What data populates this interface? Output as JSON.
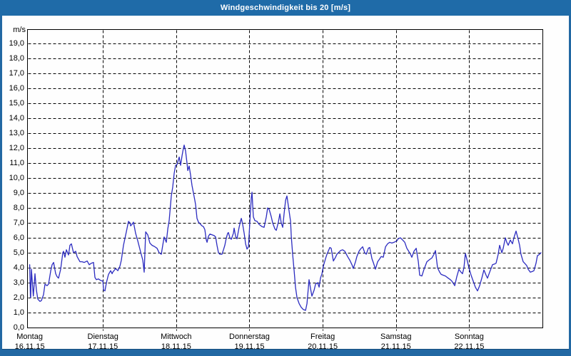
{
  "window": {
    "title": "Windgeschwindigkeit bis 20 [m/s]"
  },
  "colors": {
    "frame_blue": "#2268a3",
    "titlebar_blue": "#1f6ba8",
    "plot_background": "#fefefe",
    "grid_black": "#000000",
    "line_blue": "#2c2cc0",
    "title_text": "#ffffff",
    "label_text": "#000000"
  },
  "chart_data": {
    "type": "line",
    "title": "Windgeschwindigkeit bis 20 [m/s]",
    "xlabel": "",
    "ylabel": "m/s",
    "ylim": [
      0,
      20
    ],
    "ytick_step": 1.0,
    "ytick_labels": [
      "0,0",
      "1,0",
      "2,0",
      "3,0",
      "4,0",
      "5,0",
      "6,0",
      "7,0",
      "8,0",
      "9,0",
      "10,0",
      "11,0",
      "12,0",
      "13,0",
      "14,0",
      "15,0",
      "16,0",
      "17,0",
      "18,0",
      "19,0"
    ],
    "grid": "dashed",
    "legend": "none",
    "x_unit": "days, 0 = Montag 16.11.15 00:00, 7 = end of Sonntag 22.11.15",
    "categories_days": [
      {
        "label": "Montag",
        "date": "16.11.15"
      },
      {
        "label": "Dienstag",
        "date": "17.11.15"
      },
      {
        "label": "Mittwoch",
        "date": "18.11.15"
      },
      {
        "label": "Donnerstag",
        "date": "19.11.15"
      },
      {
        "label": "Freitag",
        "date": "20.11.15"
      },
      {
        "label": "Samstag",
        "date": "21.11.15"
      },
      {
        "label": "Sonntag",
        "date": "22.11.15"
      }
    ],
    "series": [
      {
        "name": "Windgeschwindigkeit [m/s]",
        "color": "#2c2cc0",
        "points": [
          [
            0.0,
            4.2
          ],
          [
            0.004,
            3.3
          ],
          [
            0.01,
            2.1
          ],
          [
            0.014,
            2.0
          ],
          [
            0.023,
            3.9
          ],
          [
            0.05,
            2.1
          ],
          [
            0.072,
            3.6
          ],
          [
            0.092,
            2.5
          ],
          [
            0.111,
            1.9
          ],
          [
            0.14,
            1.75
          ],
          [
            0.16,
            1.8
          ],
          [
            0.189,
            2.2
          ],
          [
            0.209,
            2.9
          ],
          [
            0.238,
            2.8
          ],
          [
            0.257,
            2.9
          ],
          [
            0.287,
            3.8
          ],
          [
            0.306,
            4.2
          ],
          [
            0.326,
            4.35
          ],
          [
            0.355,
            3.6
          ],
          [
            0.374,
            3.4
          ],
          [
            0.394,
            3.3
          ],
          [
            0.423,
            3.9
          ],
          [
            0.452,
            5.0
          ],
          [
            0.462,
            5.1
          ],
          [
            0.481,
            4.7
          ],
          [
            0.501,
            5.2
          ],
          [
            0.53,
            4.85
          ],
          [
            0.55,
            5.5
          ],
          [
            0.569,
            5.6
          ],
          [
            0.598,
            5.0
          ],
          [
            0.628,
            5.1
          ],
          [
            0.647,
            4.75
          ],
          [
            0.686,
            4.4
          ],
          [
            0.715,
            4.4
          ],
          [
            0.745,
            4.35
          ],
          [
            0.784,
            4.45
          ],
          [
            0.813,
            4.2
          ],
          [
            0.842,
            4.3
          ],
          [
            0.871,
            4.35
          ],
          [
            0.891,
            3.35
          ],
          [
            0.91,
            3.2
          ],
          [
            0.939,
            3.25
          ],
          [
            0.969,
            3.15
          ],
          [
            1.0,
            3.1
          ],
          [
            1.008,
            2.5
          ],
          [
            1.027,
            2.45
          ],
          [
            1.047,
            3.0
          ],
          [
            1.076,
            3.55
          ],
          [
            1.105,
            3.8
          ],
          [
            1.125,
            3.6
          ],
          [
            1.134,
            3.7
          ],
          [
            1.173,
            3.95
          ],
          [
            1.203,
            3.8
          ],
          [
            1.232,
            4.1
          ],
          [
            1.251,
            4.5
          ],
          [
            1.28,
            5.5
          ],
          [
            1.319,
            6.4
          ],
          [
            1.349,
            7.1
          ],
          [
            1.368,
            7.0
          ],
          [
            1.378,
            6.8
          ],
          [
            1.397,
            6.9
          ],
          [
            1.417,
            7.05
          ],
          [
            1.446,
            6.3
          ],
          [
            1.475,
            5.8
          ],
          [
            1.514,
            5.05
          ],
          [
            1.544,
            4.5
          ],
          [
            1.563,
            3.7
          ],
          [
            1.583,
            6.4
          ],
          [
            1.612,
            6.2
          ],
          [
            1.641,
            5.65
          ],
          [
            1.67,
            5.5
          ],
          [
            1.709,
            5.4
          ],
          [
            1.738,
            5.3
          ],
          [
            1.768,
            5.0
          ],
          [
            1.797,
            4.9
          ],
          [
            1.816,
            5.5
          ],
          [
            1.836,
            6.05
          ],
          [
            1.865,
            5.7
          ],
          [
            1.885,
            6.6
          ],
          [
            1.904,
            7.15
          ],
          [
            1.933,
            8.8
          ],
          [
            1.953,
            9.4
          ],
          [
            1.972,
            10.3
          ],
          [
            1.992,
            10.85
          ],
          [
            2.011,
            10.9
          ],
          [
            2.041,
            11.4
          ],
          [
            2.06,
            10.85
          ],
          [
            2.08,
            11.5
          ],
          [
            2.099,
            12.0
          ],
          [
            2.109,
            12.2
          ],
          [
            2.128,
            11.8
          ],
          [
            2.148,
            11.0
          ],
          [
            2.158,
            10.5
          ],
          [
            2.177,
            10.8
          ],
          [
            2.196,
            10.2
          ],
          [
            2.216,
            9.5
          ],
          [
            2.235,
            9.0
          ],
          [
            2.255,
            8.5
          ],
          [
            2.265,
            8.2
          ],
          [
            2.284,
            7.3
          ],
          [
            2.304,
            7.05
          ],
          [
            2.323,
            6.95
          ],
          [
            2.352,
            6.8
          ],
          [
            2.372,
            6.75
          ],
          [
            2.391,
            6.55
          ],
          [
            2.411,
            5.85
          ],
          [
            2.421,
            5.7
          ],
          [
            2.44,
            6.1
          ],
          [
            2.46,
            6.25
          ],
          [
            2.489,
            6.2
          ],
          [
            2.518,
            6.15
          ],
          [
            2.538,
            6.05
          ],
          [
            2.557,
            5.5
          ],
          [
            2.577,
            5.0
          ],
          [
            2.596,
            4.9
          ],
          [
            2.625,
            4.9
          ],
          [
            2.645,
            5.2
          ],
          [
            2.664,
            5.5
          ],
          [
            2.684,
            6.0
          ],
          [
            2.703,
            6.3
          ],
          [
            2.713,
            6.35
          ],
          [
            2.733,
            6.0
          ],
          [
            2.752,
            5.9
          ],
          [
            2.781,
            6.3
          ],
          [
            2.791,
            6.65
          ],
          [
            2.811,
            6.1
          ],
          [
            2.83,
            5.93
          ],
          [
            2.859,
            6.7
          ],
          [
            2.879,
            7.15
          ],
          [
            2.889,
            7.3
          ],
          [
            2.908,
            6.9
          ],
          [
            2.928,
            6.3
          ],
          [
            2.947,
            5.6
          ],
          [
            2.967,
            5.25
          ],
          [
            2.986,
            5.4
          ],
          [
            3.006,
            7.1
          ],
          [
            3.025,
            8.7
          ],
          [
            3.035,
            9.05
          ],
          [
            3.045,
            8.1
          ],
          [
            3.054,
            7.4
          ],
          [
            3.074,
            7.15
          ],
          [
            3.103,
            7.1
          ],
          [
            3.132,
            6.9
          ],
          [
            3.171,
            6.75
          ],
          [
            3.2,
            6.7
          ],
          [
            3.23,
            7.4
          ],
          [
            3.249,
            8.0
          ],
          [
            3.269,
            7.9
          ],
          [
            3.298,
            7.4
          ],
          [
            3.317,
            7.0
          ],
          [
            3.347,
            6.6
          ],
          [
            3.366,
            6.5
          ],
          [
            3.395,
            7.05
          ],
          [
            3.415,
            7.6
          ],
          [
            3.434,
            7.0
          ],
          [
            3.454,
            6.7
          ],
          [
            3.473,
            7.6
          ],
          [
            3.493,
            8.5
          ],
          [
            3.512,
            8.8
          ],
          [
            3.532,
            8.1
          ],
          [
            3.541,
            7.8
          ],
          [
            3.561,
            7.1
          ],
          [
            3.571,
            6.1
          ],
          [
            3.59,
            4.9
          ],
          [
            3.61,
            3.8
          ],
          [
            3.629,
            2.7
          ],
          [
            3.649,
            2.0
          ],
          [
            3.678,
            1.6
          ],
          [
            3.707,
            1.35
          ],
          [
            3.736,
            1.2
          ],
          [
            3.766,
            1.15
          ],
          [
            3.785,
            1.6
          ],
          [
            3.814,
            3.2
          ],
          [
            3.834,
            2.6
          ],
          [
            3.853,
            2.1
          ],
          [
            3.883,
            2.5
          ],
          [
            3.902,
            2.9
          ],
          [
            3.931,
            3.0
          ],
          [
            3.951,
            2.7
          ],
          [
            3.97,
            3.3
          ],
          [
            3.99,
            3.6
          ],
          [
            4.009,
            4.1
          ],
          [
            4.038,
            4.6
          ],
          [
            4.058,
            4.9
          ],
          [
            4.097,
            5.35
          ],
          [
            4.116,
            5.3
          ],
          [
            4.146,
            4.45
          ],
          [
            4.175,
            4.7
          ],
          [
            4.194,
            4.9
          ],
          [
            4.224,
            5.05
          ],
          [
            4.243,
            5.15
          ],
          [
            4.272,
            5.2
          ],
          [
            4.302,
            5.1
          ],
          [
            4.34,
            4.75
          ],
          [
            4.37,
            4.5
          ],
          [
            4.399,
            4.2
          ],
          [
            4.418,
            3.95
          ],
          [
            4.448,
            4.4
          ],
          [
            4.467,
            4.75
          ],
          [
            4.496,
            5.1
          ],
          [
            4.516,
            5.25
          ],
          [
            4.545,
            5.4
          ],
          [
            4.574,
            5.0
          ],
          [
            4.594,
            4.9
          ],
          [
            4.623,
            5.3
          ],
          [
            4.642,
            5.35
          ],
          [
            4.672,
            4.6
          ],
          [
            4.691,
            4.35
          ],
          [
            4.72,
            3.9
          ],
          [
            4.75,
            4.4
          ],
          [
            4.779,
            4.6
          ],
          [
            4.798,
            4.75
          ],
          [
            4.827,
            4.7
          ],
          [
            4.857,
            5.4
          ],
          [
            4.886,
            5.6
          ],
          [
            4.915,
            5.7
          ],
          [
            4.944,
            5.65
          ],
          [
            4.974,
            5.7
          ],
          [
            5.013,
            5.8
          ],
          [
            5.032,
            5.95
          ],
          [
            5.061,
            6.0
          ],
          [
            5.091,
            5.85
          ],
          [
            5.12,
            5.7
          ],
          [
            5.149,
            5.3
          ],
          [
            5.168,
            5.15
          ],
          [
            5.198,
            4.9
          ],
          [
            5.217,
            4.7
          ],
          [
            5.246,
            5.1
          ],
          [
            5.276,
            5.3
          ],
          [
            5.305,
            4.4
          ],
          [
            5.324,
            3.5
          ],
          [
            5.354,
            3.45
          ],
          [
            5.383,
            3.9
          ],
          [
            5.422,
            4.4
          ],
          [
            5.461,
            4.55
          ],
          [
            5.49,
            4.65
          ],
          [
            5.519,
            4.9
          ],
          [
            5.539,
            5.15
          ],
          [
            5.568,
            4.0
          ],
          [
            5.597,
            3.7
          ],
          [
            5.617,
            3.55
          ],
          [
            5.646,
            3.5
          ],
          [
            5.675,
            3.45
          ],
          [
            5.714,
            3.3
          ],
          [
            5.743,
            3.2
          ],
          [
            5.763,
            3.1
          ],
          [
            5.802,
            2.8
          ],
          [
            5.831,
            3.4
          ],
          [
            5.86,
            3.9
          ],
          [
            5.88,
            3.75
          ],
          [
            5.909,
            3.6
          ],
          [
            5.928,
            4.0
          ],
          [
            5.948,
            4.95
          ],
          [
            5.977,
            4.4
          ],
          [
            5.996,
            4.0
          ],
          [
            6.026,
            3.5
          ],
          [
            6.055,
            3.1
          ],
          [
            6.084,
            2.7
          ],
          [
            6.113,
            2.45
          ],
          [
            6.142,
            2.8
          ],
          [
            6.172,
            3.3
          ],
          [
            6.201,
            3.85
          ],
          [
            6.23,
            3.5
          ],
          [
            6.25,
            3.3
          ],
          [
            6.279,
            3.7
          ],
          [
            6.318,
            4.2
          ],
          [
            6.347,
            4.25
          ],
          [
            6.367,
            4.3
          ],
          [
            6.396,
            4.9
          ],
          [
            6.415,
            5.5
          ],
          [
            6.445,
            5.0
          ],
          [
            6.464,
            5.3
          ],
          [
            6.493,
            6.0
          ],
          [
            6.513,
            5.7
          ],
          [
            6.532,
            5.5
          ],
          [
            6.561,
            5.85
          ],
          [
            6.591,
            5.6
          ],
          [
            6.61,
            6.0
          ],
          [
            6.639,
            6.45
          ],
          [
            6.669,
            5.9
          ],
          [
            6.688,
            5.5
          ],
          [
            6.707,
            4.9
          ],
          [
            6.737,
            4.4
          ],
          [
            6.756,
            4.3
          ],
          [
            6.785,
            4.15
          ],
          [
            6.805,
            3.9
          ],
          [
            6.834,
            3.7
          ],
          [
            6.863,
            3.75
          ],
          [
            6.883,
            3.8
          ],
          [
            6.912,
            4.3
          ],
          [
            6.931,
            4.8
          ],
          [
            6.961,
            4.9
          ],
          [
            6.98,
            5.0
          ]
        ]
      }
    ]
  }
}
